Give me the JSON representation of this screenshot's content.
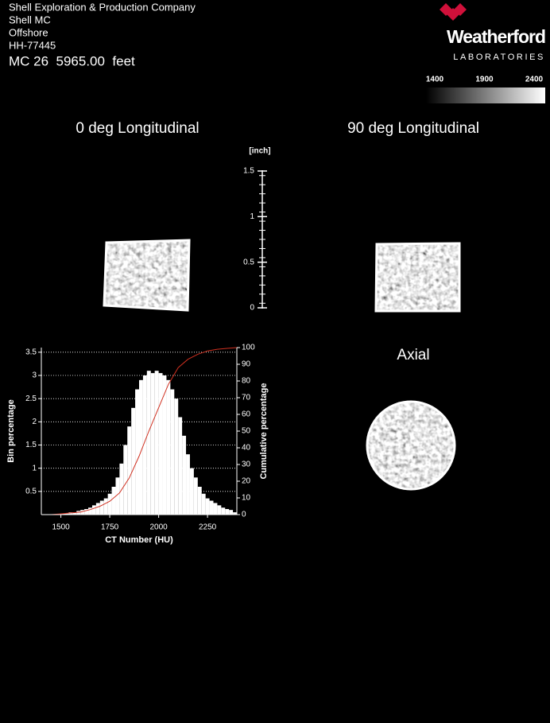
{
  "header": {
    "lines": [
      "Shell Exploration & Production Company",
      "Shell MC",
      "Offshore",
      "HH-77445"
    ],
    "depth": "MC 26  5965.00  feet"
  },
  "logo": {
    "name": "Weatherford",
    "subtitle": "LABORATORIES"
  },
  "colorbar": {
    "ticks": [
      1400,
      1900,
      2400
    ]
  },
  "views": {
    "longitudinal_0": "0 deg Longitudinal",
    "longitudinal_90": "90 deg Longitudinal",
    "axial": "Axial"
  },
  "scale": {
    "unit": "[inch]",
    "ticks": [
      0,
      0.5,
      1,
      1.5
    ]
  },
  "chart_data": {
    "type": "histogram",
    "xlabel": "CT Number (HU)",
    "ylabel": "Bin percentage",
    "y2label": "Cumulative percentage",
    "bins": [
      1400,
      1420,
      1440,
      1460,
      1480,
      1500,
      1520,
      1540,
      1560,
      1580,
      1600,
      1620,
      1640,
      1660,
      1680,
      1700,
      1720,
      1740,
      1760,
      1780,
      1800,
      1820,
      1840,
      1860,
      1880,
      1900,
      1920,
      1940,
      1960,
      1980,
      2000,
      2020,
      2040,
      2060,
      2080,
      2100,
      2120,
      2140,
      2160,
      2180,
      2200,
      2220,
      2240,
      2260,
      2280,
      2300,
      2320,
      2340,
      2360,
      2380,
      2400
    ],
    "values": [
      0,
      0,
      0,
      0,
      0,
      0.02,
      0.03,
      0.05,
      0.05,
      0.08,
      0.1,
      0.12,
      0.15,
      0.2,
      0.25,
      0.3,
      0.35,
      0.45,
      0.6,
      0.8,
      1.1,
      1.5,
      1.9,
      2.3,
      2.7,
      2.9,
      3.0,
      3.1,
      3.05,
      3.1,
      3.05,
      3.0,
      2.9,
      2.7,
      2.5,
      2.1,
      1.7,
      1.3,
      1.0,
      0.8,
      0.6,
      0.45,
      0.35,
      0.3,
      0.25,
      0.2,
      0.15,
      0.12,
      0.1,
      0.05
    ],
    "color": "#ffffff",
    "cumulative": {
      "name": "Cumulative percentage",
      "axis": "y2",
      "color": "#d03020",
      "x": [
        1400,
        1450,
        1500,
        1550,
        1600,
        1650,
        1700,
        1750,
        1800,
        1850,
        1900,
        1950,
        2000,
        2050,
        2100,
        2150,
        2200,
        2250,
        2300,
        2350,
        2400
      ],
      "values": [
        0,
        0,
        0.5,
        1,
        1.5,
        3,
        5,
        8,
        13,
        22,
        35,
        50,
        64,
        78,
        88,
        93,
        96,
        98,
        99,
        99.5,
        100
      ]
    },
    "xlim": [
      1400,
      2400
    ],
    "xticks": [
      1500,
      1750,
      2000,
      2250
    ],
    "ylim": [
      0,
      3.6
    ],
    "yticks": [
      0.5,
      1,
      1.5,
      2,
      2.5,
      3,
      3.5
    ],
    "y2lim": [
      0,
      100
    ],
    "y2ticks": [
      0,
      10,
      20,
      30,
      40,
      50,
      60,
      70,
      80,
      90,
      100
    ],
    "grid": true
  }
}
